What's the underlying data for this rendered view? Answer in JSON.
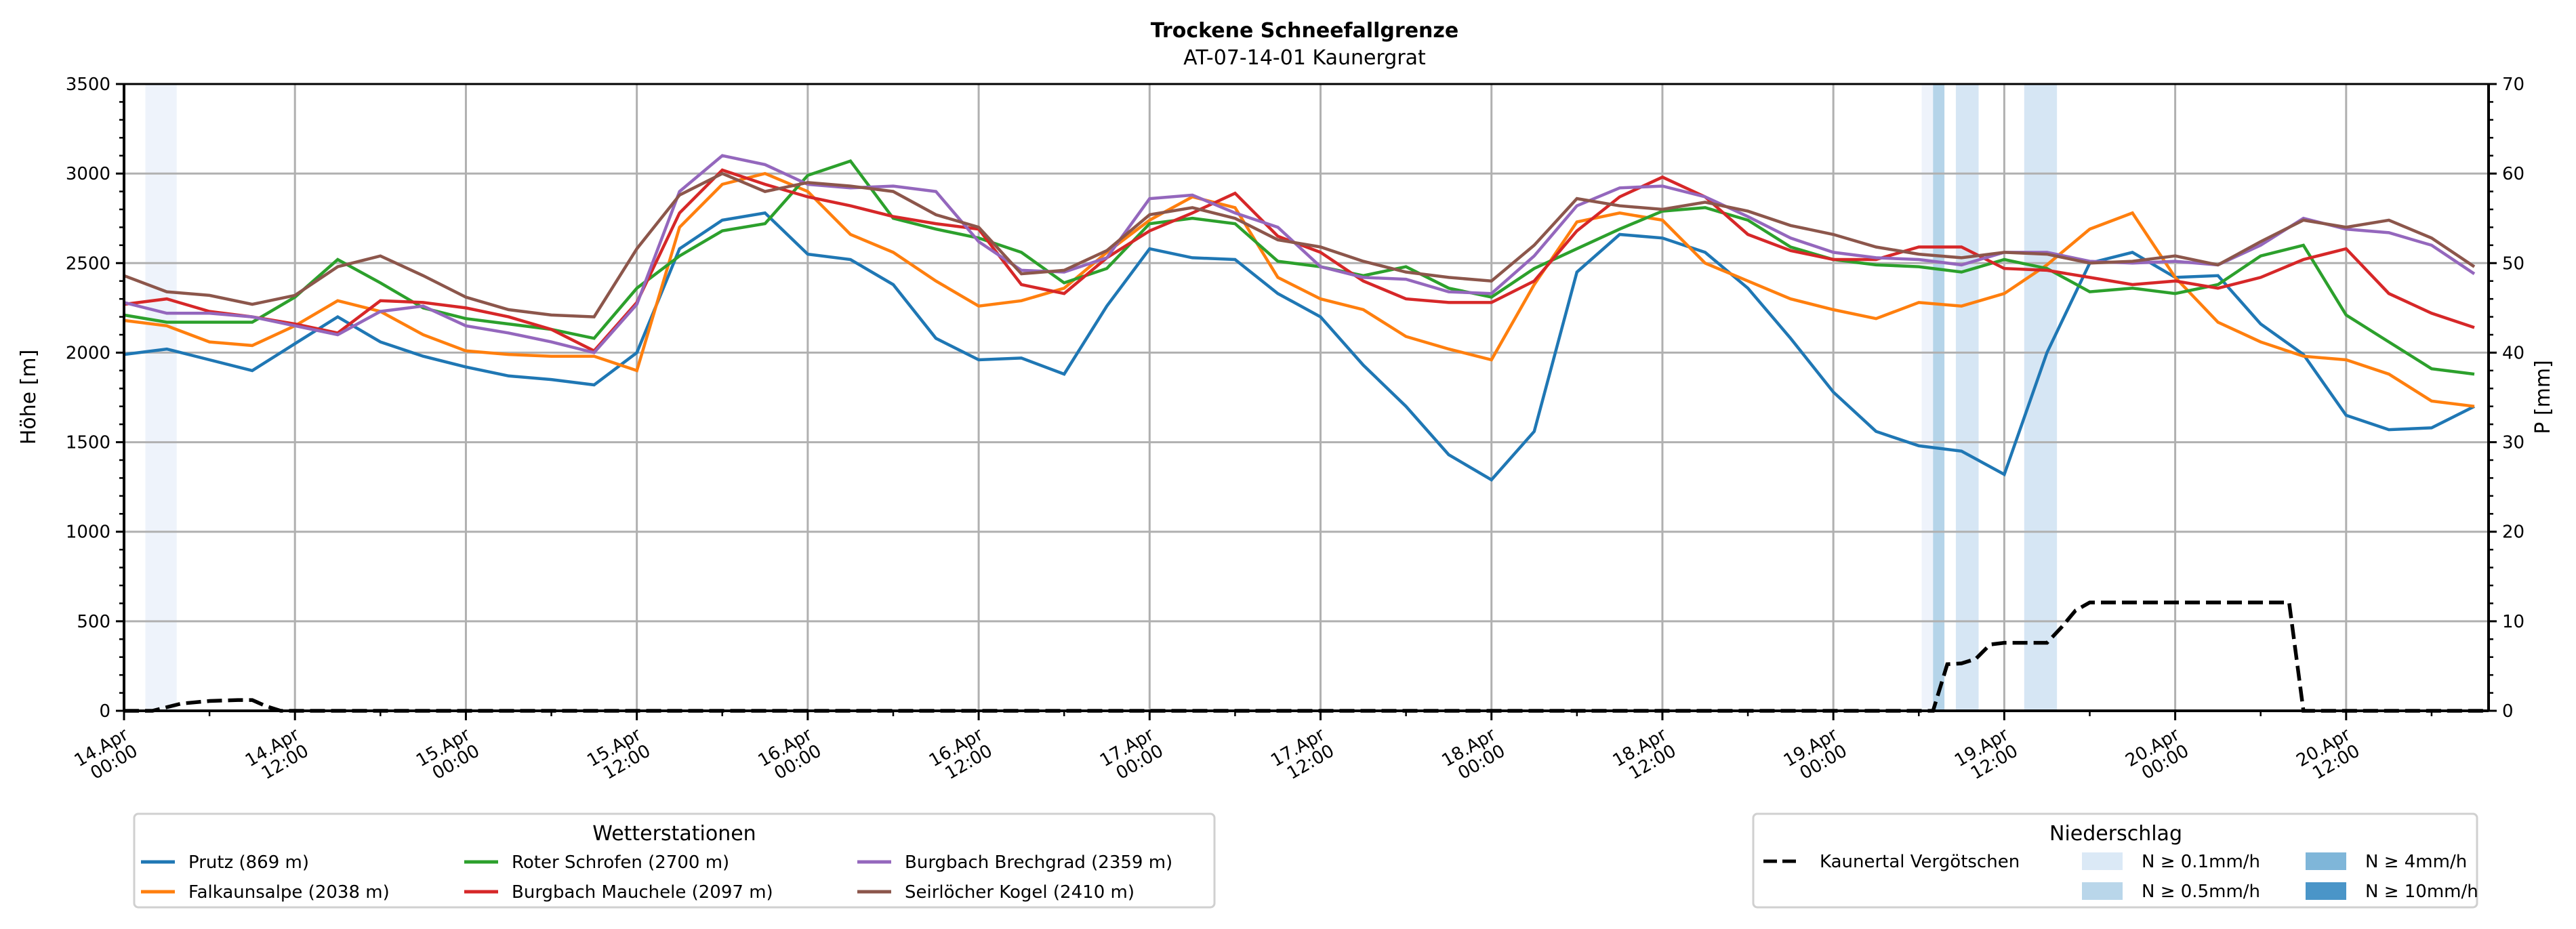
{
  "chart_data": {
    "type": "line",
    "title": "Trockene Schneefallgrenze",
    "subtitle": "AT-07-14-01 Kaunergrat",
    "ylabel": "Höhe [m]",
    "ylabel_right": "P [mm]",
    "ylim": [
      0,
      3500
    ],
    "ylim_right": [
      0,
      70
    ],
    "yticks": [
      0,
      500,
      1000,
      1500,
      2000,
      2500,
      3000,
      3500
    ],
    "yticks_right": [
      0,
      10,
      20,
      30,
      40,
      50,
      60,
      70
    ],
    "xlim_hours": [
      0,
      166
    ],
    "x_unit": "hours since 14.Apr 00:00",
    "xticks": [
      {
        "h": 0,
        "label": [
          "14.Apr",
          "00:00"
        ]
      },
      {
        "h": 12,
        "label": [
          "14.Apr",
          "12:00"
        ]
      },
      {
        "h": 24,
        "label": [
          "15.Apr",
          "00:00"
        ]
      },
      {
        "h": 36,
        "label": [
          "15.Apr",
          "12:00"
        ]
      },
      {
        "h": 48,
        "label": [
          "16.Apr",
          "00:00"
        ]
      },
      {
        "h": 60,
        "label": [
          "16.Apr",
          "12:00"
        ]
      },
      {
        "h": 72,
        "label": [
          "17.Apr",
          "00:00"
        ]
      },
      {
        "h": 84,
        "label": [
          "17.Apr",
          "12:00"
        ]
      },
      {
        "h": 96,
        "label": [
          "18.Apr",
          "00:00"
        ]
      },
      {
        "h": 108,
        "label": [
          "18.Apr",
          "12:00"
        ]
      },
      {
        "h": 120,
        "label": [
          "19.Apr",
          "00:00"
        ]
      },
      {
        "h": 132,
        "label": [
          "19.Apr",
          "12:00"
        ]
      },
      {
        "h": 144,
        "label": [
          "20.Apr",
          "00:00"
        ]
      },
      {
        "h": 156,
        "label": [
          "20.Apr",
          "12:00"
        ]
      }
    ],
    "grid": true,
    "x": [
      0,
      3,
      6,
      9,
      12,
      15,
      18,
      21,
      24,
      27,
      30,
      33,
      36,
      39,
      42,
      45,
      48,
      51,
      54,
      57,
      60,
      63,
      66,
      69,
      72,
      75,
      78,
      81,
      84,
      87,
      90,
      93,
      96,
      99,
      102,
      105,
      108,
      111,
      114,
      117,
      120,
      123,
      126,
      129,
      132,
      135,
      138,
      141,
      144,
      147,
      150,
      153,
      156,
      159,
      162,
      165
    ],
    "series": [
      {
        "name": "Prutz (869 m)",
        "color": "#1f77b4",
        "values": [
          1990,
          2020,
          1960,
          1900,
          2050,
          2200,
          2060,
          1980,
          1920,
          1870,
          1850,
          1820,
          2000,
          2580,
          2740,
          2780,
          2550,
          2520,
          2380,
          2080,
          1960,
          1970,
          1880,
          2260,
          2580,
          2530,
          2520,
          2330,
          2200,
          1930,
          1700,
          1430,
          1290,
          1560,
          2450,
          2660,
          2640,
          2560,
          2360,
          2080,
          1780,
          1560,
          1480,
          1450,
          1320,
          2000,
          2500,
          2560,
          2420,
          2430,
          2160,
          1990,
          1650,
          1570,
          1580,
          1700
        ]
      },
      {
        "name": "Falkaunsalpe (2038 m)",
        "color": "#ff7f0e",
        "values": [
          2180,
          2150,
          2060,
          2040,
          2150,
          2290,
          2230,
          2100,
          2010,
          1990,
          1980,
          1980,
          1900,
          2700,
          2940,
          3000,
          2900,
          2660,
          2560,
          2400,
          2260,
          2290,
          2360,
          2560,
          2740,
          2870,
          2810,
          2420,
          2300,
          2240,
          2090,
          2020,
          1960,
          2380,
          2730,
          2780,
          2740,
          2500,
          2400,
          2300,
          2240,
          2190,
          2280,
          2260,
          2330,
          2490,
          2690,
          2780,
          2420,
          2170,
          2060,
          1980,
          1960,
          1880,
          1730,
          1700
        ]
      },
      {
        "name": "Roter Schrofen (2700 m)",
        "color": "#2ca02c",
        "values": [
          2210,
          2170,
          2170,
          2170,
          2310,
          2520,
          2390,
          2250,
          2190,
          2160,
          2130,
          2080,
          2360,
          2540,
          2680,
          2720,
          2990,
          3070,
          2750,
          2690,
          2640,
          2560,
          2390,
          2470,
          2720,
          2750,
          2720,
          2510,
          2480,
          2430,
          2480,
          2360,
          2310,
          2470,
          2580,
          2690,
          2790,
          2810,
          2740,
          2590,
          2520,
          2490,
          2480,
          2450,
          2520,
          2470,
          2340,
          2360,
          2330,
          2380,
          2540,
          2600,
          2210,
          2060,
          1910,
          1880
        ]
      },
      {
        "name": "Burgbach Mauchele (2097 m)",
        "color": "#d62728",
        "values": [
          2270,
          2300,
          2230,
          2200,
          2160,
          2110,
          2290,
          2280,
          2250,
          2200,
          2130,
          2010,
          2280,
          2780,
          3020,
          2940,
          2870,
          2820,
          2760,
          2720,
          2690,
          2380,
          2330,
          2530,
          2680,
          2780,
          2890,
          2650,
          2560,
          2400,
          2300,
          2280,
          2280,
          2400,
          2680,
          2870,
          2980,
          2870,
          2660,
          2570,
          2520,
          2520,
          2590,
          2590,
          2470,
          2460,
          2420,
          2380,
          2400,
          2360,
          2420,
          2520,
          2580,
          2330,
          2220,
          2140
        ]
      },
      {
        "name": "Burgbach Brechgrad (2359 m)",
        "color": "#9467bd",
        "values": [
          2280,
          2220,
          2220,
          2200,
          2150,
          2100,
          2230,
          2260,
          2150,
          2110,
          2060,
          2000,
          2270,
          2900,
          3100,
          3050,
          2940,
          2920,
          2930,
          2900,
          2620,
          2460,
          2450,
          2530,
          2860,
          2880,
          2780,
          2700,
          2480,
          2420,
          2410,
          2340,
          2330,
          2540,
          2820,
          2920,
          2930,
          2870,
          2760,
          2640,
          2560,
          2530,
          2520,
          2490,
          2560,
          2560,
          2510,
          2500,
          2510,
          2490,
          2600,
          2750,
          2690,
          2670,
          2600,
          2440
        ]
      },
      {
        "name": "Seirlöcher Kogel (2410 m)",
        "color": "#8c564b",
        "values": [
          2430,
          2340,
          2320,
          2270,
          2320,
          2480,
          2540,
          2430,
          2310,
          2240,
          2210,
          2200,
          2580,
          2880,
          3000,
          2900,
          2950,
          2930,
          2900,
          2770,
          2700,
          2440,
          2460,
          2570,
          2770,
          2810,
          2750,
          2630,
          2590,
          2510,
          2450,
          2420,
          2400,
          2600,
          2860,
          2820,
          2800,
          2840,
          2790,
          2710,
          2660,
          2590,
          2550,
          2530,
          2560,
          2550,
          2500,
          2510,
          2540,
          2490,
          2620,
          2740,
          2700,
          2740,
          2640,
          2480
        ]
      }
    ],
    "precip_series": {
      "name": "Kaunertal Vergötschen",
      "color": "#000000",
      "points_mm": [
        [
          0,
          0
        ],
        [
          2,
          0
        ],
        [
          4,
          0.8
        ],
        [
          6,
          1.1
        ],
        [
          8,
          1.2
        ],
        [
          9,
          1.2
        ],
        [
          10,
          0.5
        ],
        [
          11,
          0
        ],
        [
          127,
          0
        ],
        [
          128,
          5.2
        ],
        [
          129,
          5.3
        ],
        [
          130,
          5.8
        ],
        [
          131,
          7.4
        ],
        [
          132,
          7.6
        ],
        [
          134,
          7.6
        ],
        [
          135,
          7.6
        ],
        [
          136,
          9.3
        ],
        [
          137,
          11.2
        ],
        [
          138,
          12.1
        ],
        [
          150,
          12.1
        ],
        [
          152,
          12.1
        ],
        [
          153,
          0
        ],
        [
          166,
          0
        ]
      ]
    },
    "precip_bands": [
      {
        "start_h": 1.5,
        "end_h": 3.7,
        "class": "N ≥ 0.1mm/h",
        "color": "#eef3fb"
      },
      {
        "start_h": 126.2,
        "end_h": 127.0,
        "class": "N ≥ 0.1mm/h",
        "color": "#eef3fb"
      },
      {
        "start_h": 127.0,
        "end_h": 127.8,
        "class": "N ≥ 4mm/h",
        "color": "#b5d4e9"
      },
      {
        "start_h": 128.6,
        "end_h": 130.2,
        "class": "N ≥ 0.5mm/h",
        "color": "#d6e6f4"
      },
      {
        "start_h": 133.4,
        "end_h": 135.7,
        "class": "N ≥ 0.5mm/h",
        "color": "#d6e6f4"
      }
    ],
    "legend_stations": {
      "title": "Wetterstationen",
      "placement": "bottom-left"
    },
    "legend_precip": {
      "title": "Niederschlag",
      "placement": "bottom-right",
      "line_label": "Kaunertal Vergötschen",
      "classes": [
        {
          "label": "N ≥ 0.1mm/h",
          "color": "#dbe9f6"
        },
        {
          "label": "N ≥ 0.5mm/h",
          "color": "#b9d6ea"
        },
        {
          "label": "N ≥ 4mm/h",
          "color": "#7fb6d9"
        },
        {
          "label": "N ≥ 10mm/h",
          "color": "#4a95c8"
        }
      ]
    }
  }
}
